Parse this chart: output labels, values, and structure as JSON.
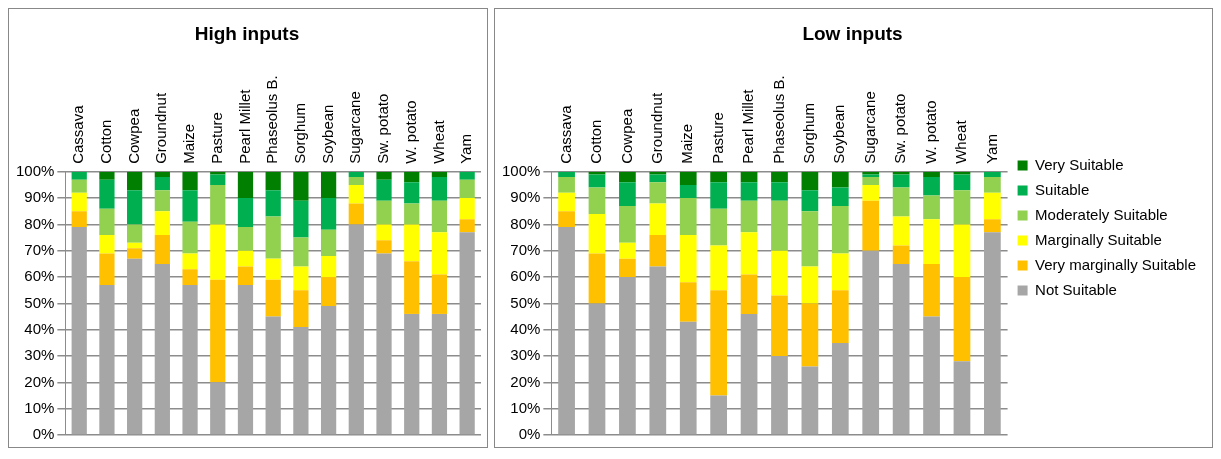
{
  "chart_data": [
    {
      "type": "bar",
      "title": "High inputs",
      "stacked": true,
      "categories": [
        "Cassava",
        "Cotton",
        "Cowpea",
        "Groundnut",
        "Maize",
        "Pasture",
        "Pearl Millet",
        "Phaseolus B.",
        "Sorghum",
        "Soybean",
        "Sugarcane",
        "Sw. potato",
        "W. potato",
        "Wheat",
        "Yam"
      ],
      "series": [
        {
          "color": "#a6a6a6",
          "values": [
            79,
            57,
            67,
            65,
            57,
            20,
            57,
            45,
            41,
            49,
            80,
            69,
            46,
            46,
            77
          ]
        },
        {
          "color": "#ffc000",
          "values": [
            6,
            12,
            4,
            11,
            6,
            39,
            7,
            14,
            14,
            11,
            8,
            5,
            20,
            15,
            5
          ]
        },
        {
          "color": "#ffff00",
          "values": [
            7,
            7,
            2,
            9,
            6,
            21,
            6,
            8,
            9,
            8,
            7,
            6,
            14,
            16,
            8
          ]
        },
        {
          "color": "#92d050",
          "values": [
            5,
            10,
            7,
            8,
            12,
            15,
            9,
            16,
            11,
            10,
            3,
            9,
            8,
            12,
            7
          ]
        },
        {
          "color": "#00b050",
          "values": [
            3,
            11,
            13,
            5,
            12,
            4,
            11,
            10,
            14,
            12,
            2,
            8,
            8,
            9,
            3
          ]
        },
        {
          "color": "#007f00",
          "values": [
            0,
            3,
            7,
            2,
            7,
            1,
            10,
            7,
            11,
            10,
            0,
            3,
            4,
            2,
            0
          ]
        }
      ],
      "ylim": [
        0,
        100
      ],
      "yticks": [
        {
          "value": 0,
          "label": "0%"
        },
        {
          "value": 10,
          "label": "10%"
        },
        {
          "value": 20,
          "label": "20%"
        },
        {
          "value": 30,
          "label": "30%"
        },
        {
          "value": 40,
          "label": "40%"
        },
        {
          "value": 50,
          "label": "50%"
        },
        {
          "value": 60,
          "label": "60%"
        },
        {
          "value": 70,
          "label": "70%"
        },
        {
          "value": 80,
          "label": "80%"
        },
        {
          "value": 90,
          "label": "90%"
        },
        {
          "value": 100,
          "label": "100%"
        }
      ],
      "grid": "y",
      "legend": false
    },
    {
      "type": "bar",
      "title": "Low inputs",
      "stacked": true,
      "categories": [
        "Cassava",
        "Cotton",
        "Cowpea",
        "Groundnut",
        "Maize",
        "Pasture",
        "Pearl Millet",
        "Phaseolus B.",
        "Sorghum",
        "Soybean",
        "Sugarcane",
        "Sw. potato",
        "W. potato",
        "Wheat",
        "Yam"
      ],
      "series": [
        {
          "name": "Not Suitable",
          "color": "#a6a6a6",
          "values": [
            79,
            50,
            60,
            64,
            43,
            15,
            46,
            30,
            26,
            35,
            70,
            65,
            45,
            28,
            77
          ]
        },
        {
          "name": "Very marginally Suitable",
          "color": "#ffc000",
          "values": [
            6,
            19,
            7,
            12,
            15,
            40,
            15,
            23,
            24,
            20,
            19,
            7,
            20,
            32,
            5
          ]
        },
        {
          "name": "Marginally Suitable",
          "color": "#ffff00",
          "values": [
            7,
            15,
            6,
            12,
            18,
            17,
            16,
            17,
            14,
            14,
            6,
            11,
            17,
            20,
            10
          ]
        },
        {
          "name": "Moderately Suitable",
          "color": "#92d050",
          "values": [
            6,
            10,
            14,
            8,
            14,
            14,
            12,
            19,
            21,
            18,
            3,
            11,
            9,
            13,
            6
          ]
        },
        {
          "name": "Suitable",
          "color": "#00b050",
          "values": [
            2,
            5,
            9,
            3,
            5,
            10,
            7,
            7,
            8,
            7,
            1,
            5,
            7,
            6,
            2
          ]
        },
        {
          "name": "Very Suitable",
          "color": "#007f00",
          "values": [
            0,
            1,
            4,
            1,
            5,
            4,
            4,
            4,
            7,
            6,
            1,
            1,
            2,
            1,
            0
          ]
        }
      ],
      "ylim": [
        0,
        100
      ],
      "yticks": [
        {
          "value": 0,
          "label": "0%"
        },
        {
          "value": 10,
          "label": "10%"
        },
        {
          "value": 20,
          "label": "20%"
        },
        {
          "value": 30,
          "label": "30%"
        },
        {
          "value": 40,
          "label": "40%"
        },
        {
          "value": 50,
          "label": "50%"
        },
        {
          "value": 60,
          "label": "60%"
        },
        {
          "value": 70,
          "label": "70%"
        },
        {
          "value": 80,
          "label": "80%"
        },
        {
          "value": 90,
          "label": "90%"
        },
        {
          "value": 100,
          "label": "100%"
        }
      ],
      "grid": "y",
      "legend": "right"
    }
  ]
}
